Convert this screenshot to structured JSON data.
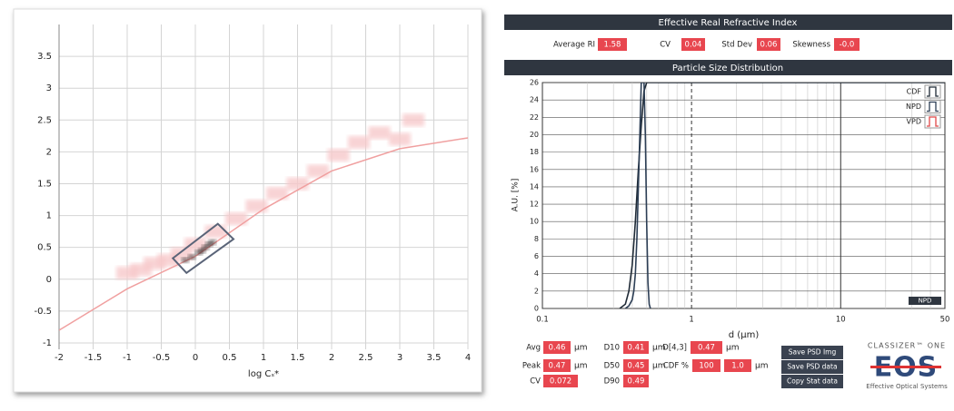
{
  "left_plot": {
    "x_label": "log Cₛ*",
    "xlim": [
      -2,
      4
    ],
    "ylim": [
      -1.1,
      4
    ],
    "xticks": [
      -2,
      -1.5,
      -1,
      -0.5,
      0,
      0.5,
      1,
      1.5,
      2,
      2.5,
      3,
      3.5,
      4
    ],
    "yticks": [
      -1,
      -0.5,
      0,
      0.5,
      1,
      1.5,
      2,
      2.5,
      3,
      3.5
    ],
    "curve": {
      "color": "#f0a0a0",
      "x": [
        -2,
        -1,
        0,
        1,
        2,
        3,
        4
      ],
      "y": [
        -0.8,
        -0.15,
        0.36,
        1.1,
        1.7,
        2.05,
        2.22
      ]
    },
    "cloud": {
      "color": "#f7c9cb",
      "x": [
        -1,
        -0.8,
        -0.6,
        -0.4,
        -0.2,
        0,
        0.3,
        0.6,
        0.9,
        1.2,
        1.5,
        1.8,
        2.1,
        2.4,
        2.7,
        3,
        3.2
      ],
      "y": [
        0.1,
        0.15,
        0.25,
        0.3,
        0.4,
        0.55,
        0.75,
        0.95,
        1.15,
        1.35,
        1.5,
        1.7,
        1.95,
        2.15,
        2.3,
        2.2,
        2.5
      ]
    },
    "core": {
      "color": "#2a1a1a",
      "x": [
        -0.15,
        -0.05,
        0.05,
        0.1,
        0.15,
        0.2,
        0.25
      ],
      "y": [
        0.3,
        0.35,
        0.42,
        0.45,
        0.5,
        0.55,
        0.58
      ]
    },
    "gate": {
      "color": "#5a6478",
      "x": [
        -0.33,
        0.33,
        0.56,
        -0.13
      ],
      "y": [
        0.33,
        0.87,
        0.63,
        0.1
      ]
    }
  },
  "ri_panel": {
    "title": "Effective Real Refractive Index",
    "fields": [
      {
        "label": "Average RI",
        "value": "1.58"
      },
      {
        "label": "CV",
        "value": "0.04"
      },
      {
        "label": "Std Dev",
        "value": "0.06"
      },
      {
        "label": "Skewness",
        "value": "-0.0"
      }
    ]
  },
  "psd_panel": {
    "title": "Particle Size Distribution",
    "x_label": "d (µm)",
    "y_label": "A.U. [%]",
    "log_x": true,
    "xlim": [
      0.1,
      50
    ],
    "ylim": [
      0,
      26
    ],
    "xticks": [
      0.1,
      1,
      10,
      50
    ],
    "yticks": [
      0,
      2,
      4,
      6,
      8,
      10,
      12,
      14,
      16,
      18,
      20,
      22,
      24,
      26
    ],
    "series": [
      {
        "name": "CDF",
        "color": "#1f2a36",
        "x": [
          0.33,
          0.36,
          0.38,
          0.4,
          0.42,
          0.44,
          0.46,
          0.48,
          0.5,
          0.55,
          50
        ],
        "y": [
          0,
          0.5,
          2,
          5,
          10,
          16,
          21,
          25,
          26,
          26,
          26
        ]
      },
      {
        "name": "NPD",
        "color": "#2c3e55",
        "x": [
          0.36,
          0.38,
          0.4,
          0.41,
          0.42,
          0.43,
          0.44,
          0.45,
          0.46,
          0.47,
          0.48,
          0.49,
          0.5,
          0.51,
          0.52,
          0.53
        ],
        "y": [
          0,
          0.3,
          1,
          2,
          4,
          8,
          14,
          20,
          26,
          26,
          26,
          20,
          10,
          3,
          0.5,
          0
        ]
      },
      {
        "name": "VPD",
        "color": "#e04848",
        "x": [],
        "y": []
      }
    ],
    "badge": "NPD"
  },
  "stats": [
    {
      "label": "Avg",
      "value": "0.46",
      "unit": "µm"
    },
    {
      "label": "Peak",
      "value": "0.47",
      "unit": "µm"
    },
    {
      "label": "CV",
      "value": "0.072"
    },
    {
      "label": "D10",
      "value": "0.41",
      "unit": "µm"
    },
    {
      "label": "D50",
      "value": "0.45",
      "unit": "µm"
    },
    {
      "label": "D90",
      "value": "0.49"
    },
    {
      "label": "D[4,3]",
      "value": "0.47",
      "unit": "µm"
    },
    {
      "label": "CDF %",
      "value": "100",
      "value2": "1.0",
      "unit": "µm"
    }
  ],
  "buttons": [
    "Save PSD Img",
    "Save PSD data",
    "Copy Stat data"
  ],
  "logo": {
    "top": "CLASSIZER™ ONE",
    "mark": "EOS",
    "bottom": "Effective Optical Systems"
  }
}
